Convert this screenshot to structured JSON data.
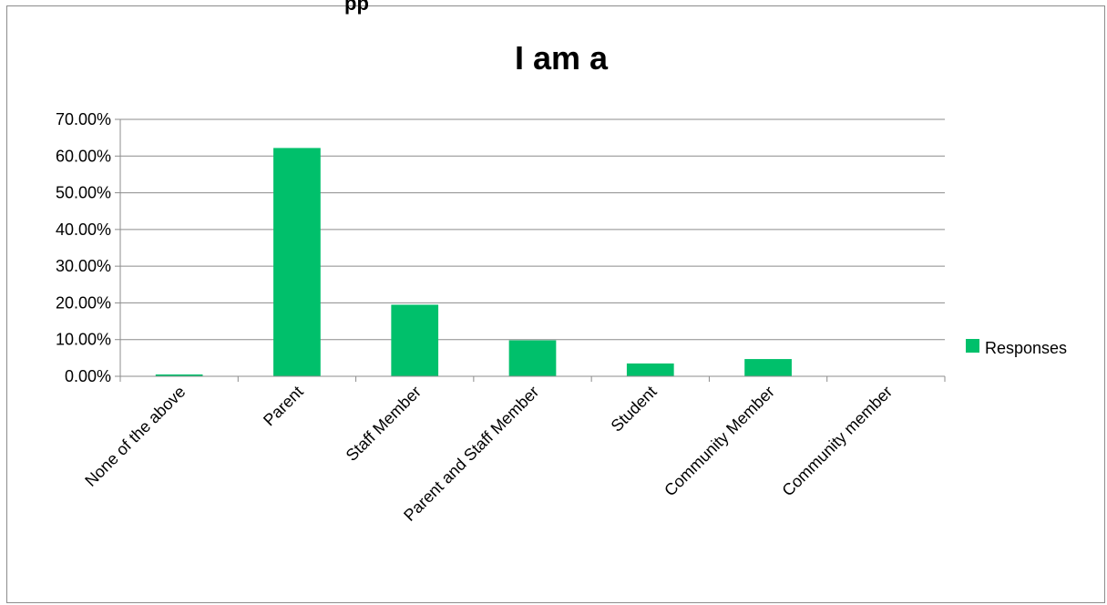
{
  "top_text_fragment": "pp",
  "chart_data": {
    "type": "bar",
    "title": "I am a",
    "categories": [
      "None of the above",
      "Parent",
      "Staff Member",
      "Parent and Staff Member",
      "Student",
      "Community Member",
      "Community member"
    ],
    "series": [
      {
        "name": "Responses",
        "values": [
          0.5,
          62.2,
          19.5,
          9.8,
          3.5,
          4.7,
          0.0
        ]
      }
    ],
    "ylim": [
      0,
      70
    ],
    "yticks": [
      "0.00%",
      "10.00%",
      "20.00%",
      "30.00%",
      "40.00%",
      "50.00%",
      "60.00%",
      "70.00%"
    ],
    "grid": true,
    "legend_position": "right",
    "colors": {
      "bar": "#00c06b",
      "grid": "#8c8c8c",
      "axis": "#8c8c8c"
    }
  }
}
